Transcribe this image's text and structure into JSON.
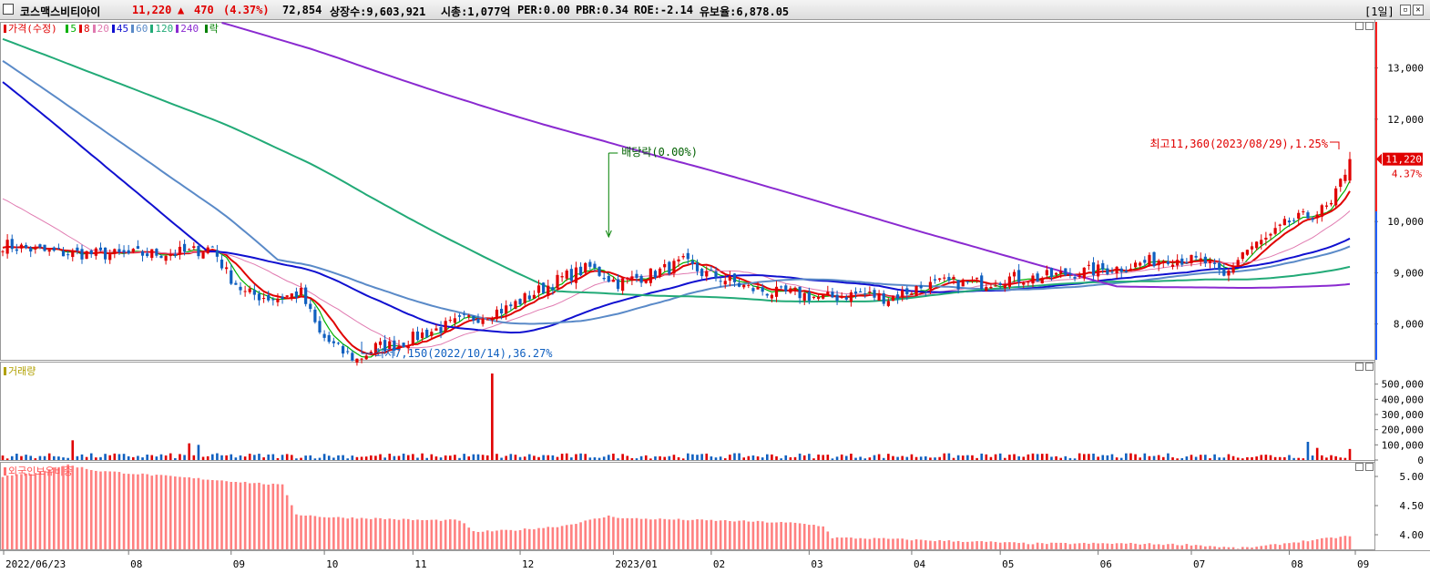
{
  "header": {
    "name": "코스맥스비티아이",
    "price": "11,220",
    "arrow": "▲",
    "change": "470",
    "pct": "(4.37%)",
    "volume": "72,854",
    "shares": "상장수:9,603,921",
    "mktcap": "시총:1,077억",
    "per": "PER:0.00",
    "pbr": "PBR:0.34",
    "roe": "ROE:-2.14",
    "float": "유보율:6,878.05",
    "period": "[1일]"
  },
  "legend": {
    "price_label": "가격(수정)",
    "ma": [
      {
        "label": "5",
        "color": "#00b000"
      },
      {
        "label": "8",
        "color": "#e00000"
      },
      {
        "label": "20",
        "color": "#e07ab0"
      },
      {
        "label": "45",
        "color": "#1010d0"
      },
      {
        "label": "60",
        "color": "#5a8ac8"
      },
      {
        "label": "120",
        "color": "#22aa77"
      },
      {
        "label": "240",
        "color": "#8a2ad0"
      }
    ],
    "rak": "락",
    "volume_label": "거래량",
    "foreign_label": "외국인보유비중"
  },
  "annotations": {
    "dividend": "배당락(0.00%)",
    "high": "최고11,360(2023/08/29),1.25%",
    "low": "최저7,150(2022/10/14),36.27%",
    "last_price": "11,220",
    "last_pct": "4.37%"
  },
  "colors": {
    "up": "#e00000",
    "down": "#1060c0",
    "accent_red": "#ff3030"
  },
  "chart_data": [
    {
      "type": "candlestick",
      "title": "가격(수정)",
      "x_ticks": [
        "2022/06/23",
        "08",
        "09",
        "10",
        "11",
        "12",
        "2023/01",
        "02",
        "03",
        "04",
        "05",
        "06",
        "07",
        "08",
        "09"
      ],
      "y_ticks": [
        "13,000",
        "12,000",
        "10,000",
        "9,000",
        "8,000"
      ],
      "ylim": [
        7300,
        13900
      ],
      "close_anchors": [
        [
          0,
          9550
        ],
        [
          10,
          9400
        ],
        [
          25,
          9350
        ],
        [
          40,
          9400
        ],
        [
          45,
          9500
        ],
        [
          48,
          9000
        ],
        [
          52,
          8600
        ],
        [
          58,
          8500
        ],
        [
          64,
          8600
        ],
        [
          66,
          8200
        ],
        [
          68,
          7800
        ],
        [
          72,
          7500
        ],
        [
          76,
          7300
        ],
        [
          80,
          7550
        ],
        [
          85,
          7600
        ],
        [
          90,
          7800
        ],
        [
          100,
          8100
        ],
        [
          108,
          8300
        ],
        [
          114,
          8600
        ],
        [
          120,
          8900
        ],
        [
          126,
          9100
        ],
        [
          132,
          8800
        ],
        [
          136,
          8900
        ],
        [
          140,
          9000
        ],
        [
          146,
          9200
        ],
        [
          150,
          9000
        ],
        [
          154,
          8900
        ],
        [
          160,
          8700
        ],
        [
          166,
          8600
        ],
        [
          170,
          8600
        ],
        [
          176,
          8500
        ],
        [
          184,
          8600
        ],
        [
          190,
          8500
        ],
        [
          196,
          8700
        ],
        [
          202,
          8800
        ],
        [
          210,
          8800
        ],
        [
          216,
          8900
        ],
        [
          222,
          8900
        ],
        [
          230,
          9000
        ],
        [
          240,
          9100
        ],
        [
          250,
          9300
        ],
        [
          258,
          9200
        ],
        [
          262,
          8900
        ],
        [
          266,
          9400
        ],
        [
          272,
          9700
        ],
        [
          276,
          10000
        ],
        [
          280,
          10100
        ],
        [
          285,
          10300
        ],
        [
          289,
          11220
        ]
      ],
      "ma5": "5",
      "ma8": "8",
      "ma20": "20",
      "ma45": "45",
      "ma60": "60",
      "ma120": "120",
      "ma240": "240"
    },
    {
      "type": "bar",
      "title": "거래량",
      "y_ticks": [
        "500,000",
        "400,000",
        "300,000",
        "200,000",
        "100,000",
        "0"
      ],
      "ylim": [
        0,
        600000
      ],
      "spikes": [
        [
          15,
          130000
        ],
        [
          40,
          110000
        ],
        [
          42,
          100000
        ],
        [
          105,
          570000
        ],
        [
          150,
          40000
        ],
        [
          280,
          120000
        ],
        [
          282,
          80000
        ],
        [
          289,
          72854
        ]
      ]
    },
    {
      "type": "bar",
      "title": "외국인보유비중",
      "y_ticks": [
        "5.00",
        "4.50",
        "4.00"
      ],
      "ylim": [
        3.75,
        5.25
      ],
      "anchors": [
        [
          0,
          5.0
        ],
        [
          6,
          5.05
        ],
        [
          14,
          5.2
        ],
        [
          20,
          5.1
        ],
        [
          28,
          5.05
        ],
        [
          36,
          5.0
        ],
        [
          44,
          4.95
        ],
        [
          52,
          4.9
        ],
        [
          60,
          4.85
        ],
        [
          63,
          4.35
        ],
        [
          70,
          4.3
        ],
        [
          80,
          4.28
        ],
        [
          90,
          4.25
        ],
        [
          98,
          4.25
        ],
        [
          101,
          4.05
        ],
        [
          110,
          4.08
        ],
        [
          120,
          4.15
        ],
        [
          126,
          4.25
        ],
        [
          130,
          4.32
        ],
        [
          134,
          4.28
        ],
        [
          140,
          4.27
        ],
        [
          150,
          4.25
        ],
        [
          160,
          4.23
        ],
        [
          170,
          4.2
        ],
        [
          176,
          4.15
        ],
        [
          178,
          3.95
        ],
        [
          190,
          3.93
        ],
        [
          200,
          3.9
        ],
        [
          210,
          3.88
        ],
        [
          220,
          3.85
        ],
        [
          240,
          3.85
        ],
        [
          255,
          3.83
        ],
        [
          265,
          3.77
        ],
        [
          270,
          3.8
        ],
        [
          278,
          3.88
        ],
        [
          289,
          3.98
        ]
      ]
    }
  ]
}
